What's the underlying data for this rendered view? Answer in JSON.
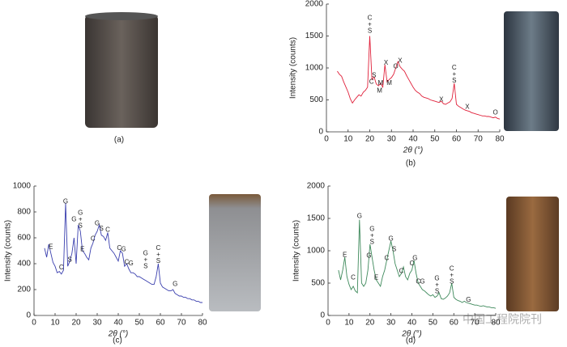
{
  "captions": [
    "(a)",
    "(b)",
    "(c)",
    "(d)"
  ],
  "watermark": "中国工程院院刊",
  "chart_data": [
    {
      "type": "line",
      "xlabel": "2θ (°)",
      "ylabel": "Intensity (counts)",
      "color": "#e0203a",
      "xlim": [
        0,
        80
      ],
      "xticks": [
        0,
        10,
        20,
        30,
        40,
        50,
        60,
        70,
        80
      ],
      "ylim": [
        0,
        2000
      ],
      "yticks": [
        0,
        500,
        1000,
        1500,
        2000
      ],
      "x": [
        5,
        6,
        7,
        8,
        9,
        10,
        11,
        12,
        13,
        14,
        15,
        16,
        17,
        18,
        19,
        20,
        21,
        22,
        23,
        24,
        25,
        26,
        27,
        28,
        29,
        30,
        31,
        32,
        33,
        34,
        35,
        36,
        37,
        38,
        39,
        40,
        41,
        42,
        43,
        44,
        45,
        46,
        47,
        48,
        49,
        50,
        51,
        52,
        53,
        54,
        55,
        56,
        57,
        58,
        59,
        60,
        61,
        62,
        63,
        64,
        65,
        66,
        67,
        68,
        69,
        70,
        71,
        72,
        73,
        74,
        75,
        76,
        77,
        78,
        79,
        80
      ],
      "values": [
        950,
        900,
        870,
        780,
        700,
        620,
        520,
        450,
        500,
        540,
        580,
        560,
        620,
        650,
        700,
        1500,
        820,
        860,
        750,
        720,
        760,
        700,
        1050,
        780,
        820,
        850,
        900,
        1000,
        1100,
        1020,
        980,
        950,
        880,
        820,
        760,
        700,
        650,
        620,
        600,
        560,
        540,
        530,
        520,
        500,
        490,
        480,
        470,
        460,
        480,
        440,
        430,
        450,
        470,
        520,
        760,
        430,
        400,
        380,
        360,
        340,
        330,
        320,
        300,
        290,
        280,
        270,
        260,
        250,
        250,
        240,
        240,
        230,
        220,
        230,
        210,
        200
      ],
      "annotations": [
        {
          "lines": [
            "C",
            "+",
            "S"
          ],
          "x": 20,
          "y": 1580
        },
        {
          "lines": [
            "S"
          ],
          "x": 22,
          "y": 880
        },
        {
          "lines": [
            "C"
          ],
          "x": 20.8,
          "y": 780
        },
        {
          "lines": [
            "M"
          ],
          "x": 25,
          "y": 760
        },
        {
          "lines": [
            "M"
          ],
          "x": 24.5,
          "y": 640
        },
        {
          "lines": [
            "X"
          ],
          "x": 27.5,
          "y": 1080
        },
        {
          "lines": [
            "M"
          ],
          "x": 29,
          "y": 760
        },
        {
          "lines": [
            "O"
          ],
          "x": 32,
          "y": 1020
        },
        {
          "lines": [
            "X"
          ],
          "x": 34,
          "y": 1110
        },
        {
          "lines": [
            "C",
            "+",
            "S"
          ],
          "x": 59,
          "y": 800
        },
        {
          "lines": [
            "X"
          ],
          "x": 53,
          "y": 500
        },
        {
          "lines": [
            "X"
          ],
          "x": 65,
          "y": 390
        },
        {
          "lines": [
            "O"
          ],
          "x": 78,
          "y": 300
        }
      ]
    },
    {
      "type": "line",
      "xlabel": "2θ (°)",
      "ylabel": "Intensity (counts)",
      "color": "#3a3fae",
      "xlim": [
        0,
        80
      ],
      "xticks": [
        0,
        10,
        20,
        30,
        40,
        50,
        60,
        70,
        80
      ],
      "ylim": [
        0,
        1000
      ],
      "yticks": [
        0,
        200,
        400,
        600,
        800,
        1000
      ],
      "x": [
        5,
        6,
        7,
        8,
        9,
        10,
        11,
        12,
        13,
        14,
        15,
        16,
        17,
        18,
        19,
        20,
        21,
        22,
        23,
        24,
        25,
        26,
        27,
        28,
        29,
        30,
        31,
        32,
        33,
        34,
        35,
        36,
        37,
        38,
        39,
        40,
        41,
        42,
        43,
        44,
        45,
        46,
        47,
        48,
        49,
        50,
        51,
        52,
        53,
        54,
        55,
        56,
        57,
        58,
        59,
        60,
        61,
        62,
        63,
        64,
        65,
        66,
        67,
        68,
        69,
        70,
        71,
        72,
        73,
        74,
        75,
        76,
        77,
        78,
        79,
        80
      ],
      "values": [
        520,
        450,
        550,
        480,
        410,
        380,
        330,
        340,
        320,
        350,
        870,
        380,
        420,
        480,
        600,
        400,
        700,
        650,
        500,
        480,
        450,
        430,
        520,
        560,
        620,
        650,
        700,
        620,
        610,
        580,
        640,
        520,
        500,
        480,
        450,
        420,
        500,
        480,
        380,
        400,
        360,
        330,
        330,
        320,
        300,
        300,
        290,
        280,
        270,
        260,
        250,
        240,
        240,
        300,
        400,
        250,
        220,
        210,
        200,
        190,
        190,
        200,
        170,
        160,
        150,
        150,
        140,
        140,
        130,
        130,
        120,
        120,
        110,
        110,
        100,
        100
      ],
      "annotations": [
        {
          "lines": [
            "E"
          ],
          "x": 8,
          "y": 530
        },
        {
          "lines": [
            "C"
          ],
          "x": 13,
          "y": 370
        },
        {
          "lines": [
            "G"
          ],
          "x": 15,
          "y": 880
        },
        {
          "lines": [
            "S"
          ],
          "x": 17,
          "y": 430
        },
        {
          "lines": [
            "G"
          ],
          "x": 19,
          "y": 740
        },
        {
          "lines": [
            "G",
            "+",
            "S"
          ],
          "x": 22,
          "y": 690
        },
        {
          "lines": [
            "E"
          ],
          "x": 23,
          "y": 510
        },
        {
          "lines": [
            "C"
          ],
          "x": 28,
          "y": 590
        },
        {
          "lines": [
            "G"
          ],
          "x": 30,
          "y": 710
        },
        {
          "lines": [
            "S"
          ],
          "x": 32,
          "y": 670
        },
        {
          "lines": [
            "C"
          ],
          "x": 35,
          "y": 660
        },
        {
          "lines": [
            "C"
          ],
          "x": 40.5,
          "y": 520
        },
        {
          "lines": [
            "G"
          ],
          "x": 42.5,
          "y": 510
        },
        {
          "lines": [
            "C"
          ],
          "x": 44,
          "y": 410
        },
        {
          "lines": [
            "G"
          ],
          "x": 46,
          "y": 400
        },
        {
          "lines": [
            "G",
            "+",
            "S"
          ],
          "x": 53,
          "y": 380
        },
        {
          "lines": [
            "C",
            "+",
            "S"
          ],
          "x": 59,
          "y": 420
        },
        {
          "lines": [
            "G"
          ],
          "x": 67,
          "y": 240
        }
      ]
    },
    {
      "type": "line",
      "xlabel": "2θ (°)",
      "ylabel": "Intensity (counts)",
      "color": "#3f8a5c",
      "xlim": [
        0,
        80
      ],
      "xticks": [
        0,
        10,
        20,
        30,
        40,
        50,
        60,
        70,
        80
      ],
      "ylim": [
        0,
        2000
      ],
      "yticks": [
        0,
        500,
        1000,
        1500,
        2000
      ],
      "x": [
        5,
        6,
        7,
        8,
        9,
        10,
        11,
        12,
        13,
        14,
        15,
        16,
        17,
        18,
        19,
        20,
        21,
        22,
        23,
        24,
        25,
        26,
        27,
        28,
        29,
        30,
        31,
        32,
        33,
        34,
        35,
        36,
        37,
        38,
        39,
        40,
        41,
        42,
        43,
        44,
        45,
        46,
        47,
        48,
        49,
        50,
        51,
        52,
        53,
        54,
        55,
        56,
        57,
        58,
        59,
        60,
        61,
        62,
        63,
        64,
        65,
        66,
        67,
        68,
        69,
        70,
        71,
        72,
        73,
        74,
        75,
        76,
        77,
        78,
        79,
        80
      ],
      "values": [
        700,
        550,
        700,
        900,
        600,
        480,
        400,
        450,
        380,
        350,
        1480,
        500,
        450,
        500,
        700,
        1100,
        900,
        700,
        550,
        500,
        450,
        600,
        700,
        850,
        1000,
        1150,
        1000,
        800,
        700,
        600,
        650,
        750,
        600,
        550,
        650,
        700,
        850,
        650,
        500,
        450,
        400,
        380,
        350,
        320,
        300,
        320,
        280,
        300,
        350,
        260,
        250,
        270,
        300,
        350,
        500,
        280,
        250,
        230,
        220,
        200,
        220,
        200,
        190,
        180,
        170,
        160,
        160,
        150,
        140,
        150,
        140,
        130,
        130,
        120,
        120,
        110
      ],
      "annotations": [
        {
          "lines": [
            "E"
          ],
          "x": 8,
          "y": 930
        },
        {
          "lines": [
            "C"
          ],
          "x": 12,
          "y": 580
        },
        {
          "lines": [
            "G"
          ],
          "x": 15,
          "y": 1530
        },
        {
          "lines": [
            "G"
          ],
          "x": 19.5,
          "y": 920
        },
        {
          "lines": [
            "G",
            "+",
            "S"
          ],
          "x": 21,
          "y": 1130
        },
        {
          "lines": [
            "E"
          ],
          "x": 23,
          "y": 580
        },
        {
          "lines": [
            "C"
          ],
          "x": 28,
          "y": 880
        },
        {
          "lines": [
            "G"
          ],
          "x": 30,
          "y": 1180
        },
        {
          "lines": [
            "S"
          ],
          "x": 31.5,
          "y": 1020
        },
        {
          "lines": [
            "C"
          ],
          "x": 35,
          "y": 680
        },
        {
          "lines": [
            "C"
          ],
          "x": 40,
          "y": 800
        },
        {
          "lines": [
            "G"
          ],
          "x": 41.5,
          "y": 880
        },
        {
          "lines": [
            "C"
          ],
          "x": 43,
          "y": 520
        },
        {
          "lines": [
            "G"
          ],
          "x": 45,
          "y": 520
        },
        {
          "lines": [
            "G",
            "+",
            "S"
          ],
          "x": 52,
          "y": 370
        },
        {
          "lines": [
            "C",
            "+",
            "S"
          ],
          "x": 59,
          "y": 520
        },
        {
          "lines": [
            "G"
          ],
          "x": 67,
          "y": 240
        }
      ]
    }
  ]
}
